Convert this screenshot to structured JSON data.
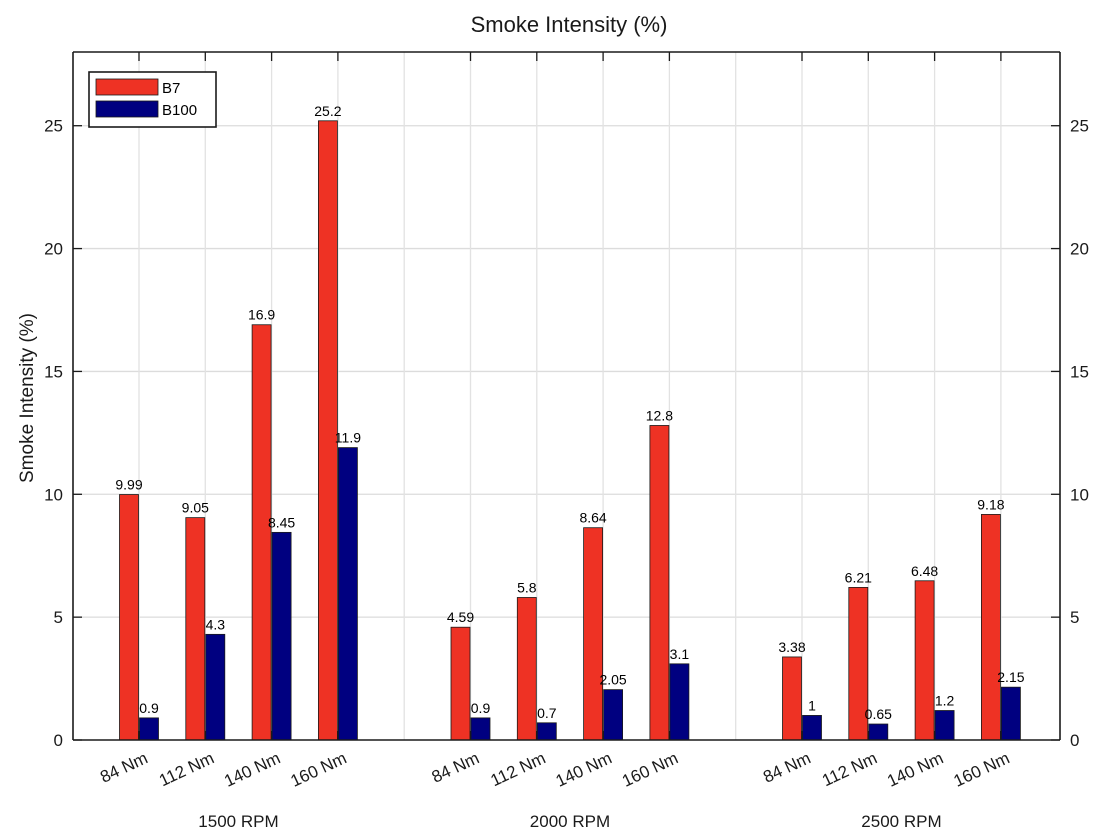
{
  "chart_data": {
    "type": "bar",
    "title": "Smoke Intensity (%)",
    "ylabel": "Smoke Intensity (%)",
    "xlabel": "",
    "ylim": [
      0,
      28
    ],
    "yticks": [
      0,
      5,
      10,
      15,
      20,
      25
    ],
    "grid": true,
    "legend_position": "top-left",
    "groups": [
      {
        "label": "1500 RPM",
        "categories": [
          "84 Nm",
          "112 Nm",
          "140 Nm",
          "160 Nm"
        ]
      },
      {
        "label": "2000 RPM",
        "categories": [
          "84 Nm",
          "112 Nm",
          "140 Nm",
          "160 Nm"
        ]
      },
      {
        "label": "2500 RPM",
        "categories": [
          "84 Nm",
          "112 Nm",
          "140 Nm",
          "160 Nm"
        ]
      }
    ],
    "series": [
      {
        "name": "B7",
        "color": "#ee3224",
        "values": [
          9.99,
          9.05,
          16.9,
          25.2,
          4.59,
          5.8,
          8.64,
          12.8,
          3.38,
          6.21,
          6.48,
          9.18
        ],
        "labels": [
          "9.99",
          "9.05",
          "16.9",
          "25.2",
          "4.59",
          "5.8",
          "8.64",
          "12.8",
          "3.38",
          "6.21",
          "6.48",
          "9.18"
        ]
      },
      {
        "name": "B100",
        "color": "#000080",
        "values": [
          0.9,
          4.3,
          8.45,
          11.9,
          0.9,
          0.7,
          2.05,
          3.1,
          1,
          0.65,
          1.2,
          2.15
        ],
        "labels": [
          "0.9",
          "4.3",
          "8.45",
          "11.9",
          "0.9",
          "0.7",
          "2.05",
          "3.1",
          "1",
          "0.65",
          "1.2",
          "2.15"
        ]
      }
    ]
  }
}
